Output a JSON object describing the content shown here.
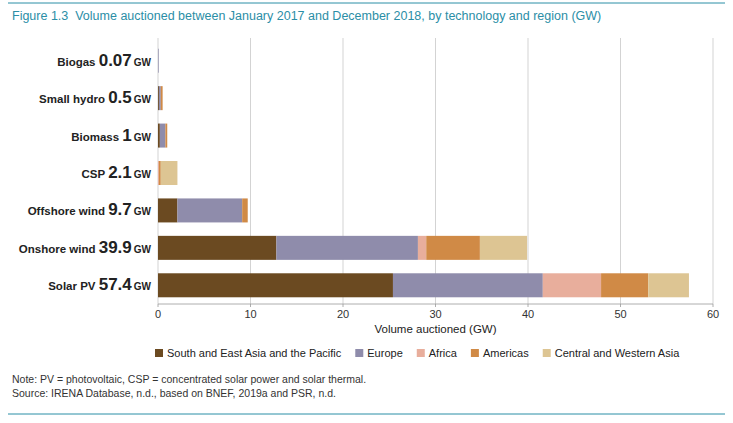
{
  "chart_data": {
    "type": "bar",
    "orientation": "horizontal",
    "stacked": true,
    "title": "Figure 1.3  Volume auctioned between January 2017 and December 2018, by technology and region (GW)",
    "categories": [
      "Biogas",
      "Small hydro",
      "Biomass",
      "CSP",
      "Offshore wind",
      "Onshore wind",
      "Solar PV"
    ],
    "totals": [
      0.07,
      0.5,
      1,
      2.1,
      9.7,
      39.9,
      57.4
    ],
    "totals_unit": "GW",
    "series": [
      {
        "name": "South and East Asia and the Pacific",
        "color": "#6b4a21",
        "values": [
          0,
          0.1,
          0.2,
          0,
          2.1,
          12.8,
          25.4
        ]
      },
      {
        "name": "Europe",
        "color": "#8f8cab",
        "values": [
          0.07,
          0.2,
          0.6,
          0,
          7.0,
          15.3,
          16.2
        ]
      },
      {
        "name": "Africa",
        "color": "#e8ae9c",
        "values": [
          0,
          0,
          0,
          0.1,
          0,
          0.9,
          6.3
        ]
      },
      {
        "name": "Americas",
        "color": "#d08a46",
        "values": [
          0,
          0.2,
          0.2,
          0.2,
          0.6,
          5.8,
          5.1
        ]
      },
      {
        "name": "Central and Western Asia",
        "color": "#ddc593",
        "values": [
          0,
          0,
          0,
          1.8,
          0,
          5.1,
          4.4
        ]
      }
    ],
    "xlim": [
      0,
      60
    ],
    "xticks": [
      0,
      10,
      20,
      30,
      40,
      50,
      60
    ],
    "x_label": "Volume auctioned (GW)",
    "grid": true,
    "legend": "bottom",
    "notes": [
      "Note: PV = photovoltaic, CSP = concentrated solar power and solar thermal.",
      "Source: IRENA Database, n.d., based on BNEF, 2019a and PSR, n.d."
    ]
  }
}
